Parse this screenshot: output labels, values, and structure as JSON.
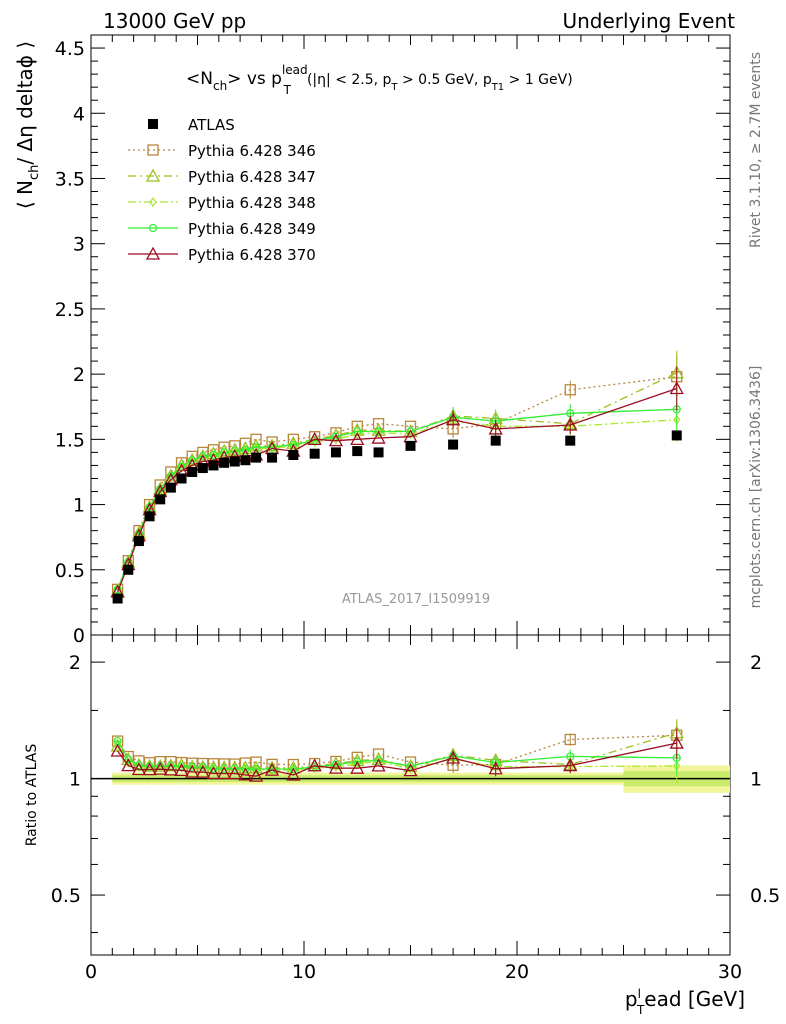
{
  "header": {
    "left": "13000 GeV pp",
    "right": "Underlying Event"
  },
  "side": {
    "rivet": "Rivet 3.1.10, ≥ 2.7M events",
    "mcplots": "mcplots.cern.ch [arXiv:1306.3436]"
  },
  "analysis_id": "ATLAS_2017_I1509919",
  "title_parts": {
    "main_a": "<N",
    "main_sub": "ch",
    "main_b": "> vs p",
    "main_sup": "lead",
    "main_subT": "T",
    "cuts_a": "(|η| < 2.5, p",
    "cuts_subT": "T",
    "cuts_b": " > 0.5 GeV, p",
    "cuts_subT1": "T1",
    "cuts_c": " > 1 GeV)"
  },
  "axes": {
    "ylabel_main_a": "⟨ N",
    "ylabel_main_sub": "ch",
    "ylabel_main_b": "/ Δη deltaϕ ⟩",
    "ylabel_ratio": "Ratio to ATLAS",
    "xlabel_a": "p",
    "xlabel_sup": "l",
    "xlabel_sub": "T",
    "xlabel_b": "ead [GeV]",
    "main_yticks": [
      "0",
      "0.5",
      "1",
      "1.5",
      "2",
      "2.5",
      "3",
      "3.5",
      "4",
      "4.5"
    ],
    "ratio_yticks": [
      "0.5",
      "1",
      "2"
    ],
    "xticks": [
      "0",
      "10",
      "20",
      "30"
    ]
  },
  "colors": {
    "atlas": "#000000",
    "p346": "#b8863b",
    "p347": "#9cbf1c",
    "p348": "#a8e830",
    "p349": "#33ee33",
    "p370": "#9b0d21",
    "band_outer": "#f2f59a",
    "band_inner": "#c8eb6c"
  },
  "chart_data": {
    "type": "line",
    "x": [
      1.25,
      1.75,
      2.25,
      2.75,
      3.25,
      3.75,
      4.25,
      4.75,
      5.25,
      5.75,
      6.25,
      6.75,
      7.25,
      7.75,
      8.5,
      9.5,
      10.5,
      11.5,
      12.5,
      13.5,
      15.0,
      17.0,
      19.0,
      22.5,
      27.5
    ],
    "xlim": [
      0,
      30
    ],
    "ylim_main": [
      0,
      4.6
    ],
    "ylim_ratio": [
      0.35,
      2.35
    ],
    "series": [
      {
        "name": "ATLAS",
        "marker": "square",
        "values": [
          0.28,
          0.5,
          0.72,
          0.91,
          1.04,
          1.13,
          1.2,
          1.25,
          1.28,
          1.3,
          1.32,
          1.33,
          1.34,
          1.36,
          1.36,
          1.38,
          1.39,
          1.4,
          1.41,
          1.4,
          1.45,
          1.46,
          1.49,
          1.49,
          1.53
        ]
      },
      {
        "name": "Pythia 6.428 346",
        "marker": "open-square",
        "values": [
          0.35,
          0.57,
          0.8,
          1.0,
          1.15,
          1.25,
          1.32,
          1.37,
          1.4,
          1.42,
          1.44,
          1.45,
          1.47,
          1.5,
          1.48,
          1.5,
          1.52,
          1.55,
          1.6,
          1.62,
          1.6,
          1.58,
          1.62,
          1.88,
          1.98
        ]
      },
      {
        "name": "Pythia 6.428 347",
        "marker": "open-triangle",
        "values": [
          0.34,
          0.56,
          0.78,
          0.98,
          1.12,
          1.22,
          1.3,
          1.34,
          1.37,
          1.39,
          1.41,
          1.42,
          1.43,
          1.45,
          1.45,
          1.47,
          1.5,
          1.53,
          1.57,
          1.57,
          1.56,
          1.68,
          1.66,
          1.62,
          2.01
        ]
      },
      {
        "name": "Pythia 6.428 348",
        "marker": "open-diamond",
        "values": [
          0.34,
          0.55,
          0.77,
          0.97,
          1.11,
          1.21,
          1.28,
          1.33,
          1.36,
          1.37,
          1.39,
          1.4,
          1.41,
          1.43,
          1.43,
          1.45,
          1.48,
          1.5,
          1.54,
          1.55,
          1.54,
          1.64,
          1.6,
          1.6,
          1.65
        ]
      },
      {
        "name": "Pythia 6.428 349",
        "marker": "open-circle-cross",
        "values": [
          0.35,
          0.56,
          0.78,
          0.98,
          1.12,
          1.22,
          1.29,
          1.34,
          1.37,
          1.38,
          1.4,
          1.41,
          1.42,
          1.44,
          1.44,
          1.46,
          1.49,
          1.52,
          1.56,
          1.56,
          1.56,
          1.67,
          1.64,
          1.7,
          1.73
        ]
      },
      {
        "name": "Pythia 6.428 370",
        "marker": "open-triangle",
        "values": [
          0.33,
          0.54,
          0.76,
          0.96,
          1.1,
          1.19,
          1.26,
          1.3,
          1.33,
          1.34,
          1.36,
          1.37,
          1.37,
          1.38,
          1.43,
          1.41,
          1.5,
          1.49,
          1.5,
          1.51,
          1.52,
          1.65,
          1.58,
          1.61,
          1.89
        ]
      }
    ],
    "legend_location": "top-left"
  }
}
